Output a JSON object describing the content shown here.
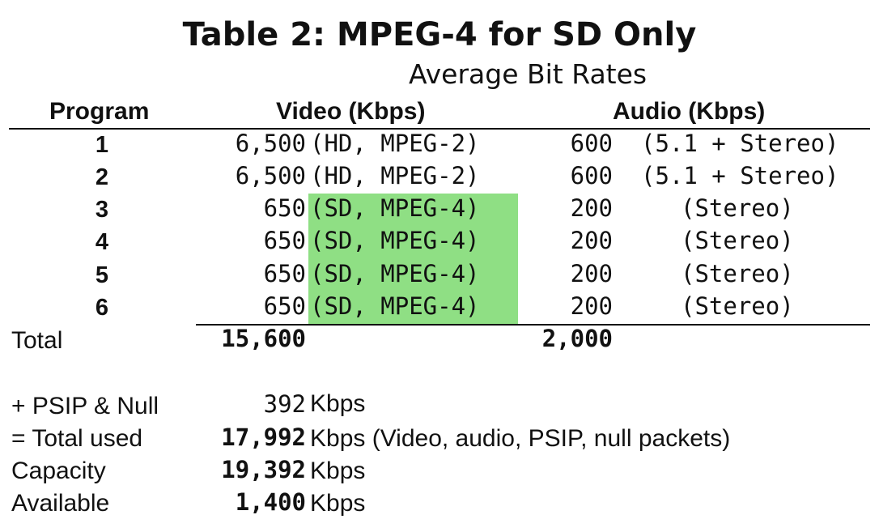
{
  "title": "Table 2: MPEG-4 for SD Only",
  "subtitle": "Average Bit Rates",
  "headers": {
    "program": "Program",
    "video": "Video (Kbps)",
    "audio": "Audio (Kbps)"
  },
  "rows": [
    {
      "program": "1",
      "video": "6,500",
      "video_note": "(HD, MPEG-2)",
      "audio": "600",
      "audio_note": "(5.1 + Stereo)"
    },
    {
      "program": "2",
      "video": "6,500",
      "video_note": "(HD, MPEG-2)",
      "audio": "600",
      "audio_note": "(5.1 + Stereo)"
    },
    {
      "program": "3",
      "video": "650",
      "video_note": "(SD, MPEG-4)",
      "audio": "200",
      "audio_note": "(Stereo)"
    },
    {
      "program": "4",
      "video": "650",
      "video_note": "(SD, MPEG-4)",
      "audio": "200",
      "audio_note": "(Stereo)"
    },
    {
      "program": "5",
      "video": "650",
      "video_note": "(SD, MPEG-4)",
      "audio": "200",
      "audio_note": "(Stereo)"
    },
    {
      "program": "6",
      "video": "650",
      "video_note": "(SD, MPEG-4)",
      "audio": "200",
      "audio_note": "(Stereo)"
    }
  ],
  "total": {
    "label": "Total",
    "video": "15,600",
    "audio": "2,000"
  },
  "summary": {
    "psip": {
      "label": "+ PSIP & Null",
      "value": "392",
      "unit": "Kbps"
    },
    "total_used": {
      "label": "= Total used",
      "value": "17,992",
      "unit": "Kbps (Video, audio, PSIP, null packets)"
    },
    "capacity": {
      "label": "Capacity",
      "value": "19,392",
      "unit": "Kbps"
    },
    "available": {
      "label": "Available",
      "value": "1,400",
      "unit": "Kbps"
    }
  },
  "colors": {
    "highlight": "#8fdf84",
    "text": "#111111"
  }
}
